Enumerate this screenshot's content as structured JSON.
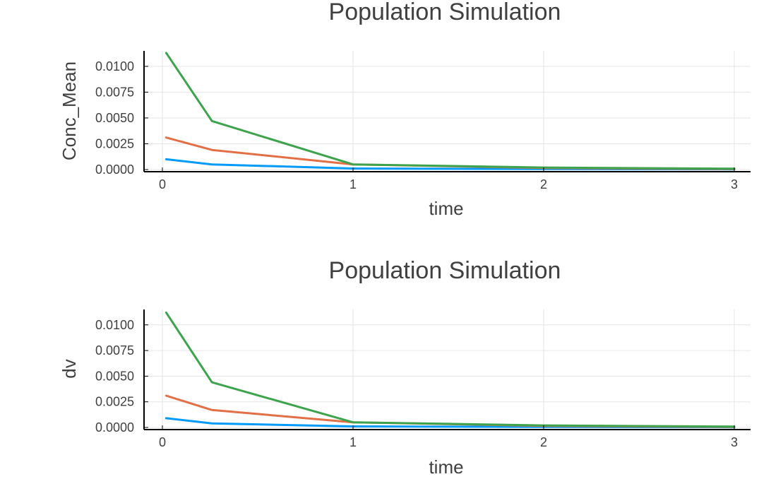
{
  "chart_data": [
    {
      "type": "line",
      "title": "Population Simulation",
      "xlabel": "time",
      "ylabel": "Conc_Mean",
      "xlim": [
        0,
        3
      ],
      "ylim": [
        0,
        0.0115
      ],
      "x_ticks": [
        "0",
        "1",
        "2",
        "3"
      ],
      "y_ticks": [
        "0.0000",
        "0.0025",
        "0.0050",
        "0.0075",
        "0.0100"
      ],
      "grid": true,
      "legend": "none",
      "x": [
        0.02,
        0.26,
        1,
        2,
        3
      ],
      "series": [
        {
          "color": "#009af9",
          "values": [
            0.001,
            0.0005,
            0.0001,
            5e-05,
            2e-05
          ]
        },
        {
          "color": "#e26f46",
          "values": [
            0.0031,
            0.0019,
            0.0005,
            0.00015,
            5e-05
          ]
        },
        {
          "color": "#3da44d",
          "values": [
            0.0113,
            0.0047,
            0.0005,
            0.0002,
            8e-05
          ]
        }
      ]
    },
    {
      "type": "line",
      "title": "Population Simulation",
      "xlabel": "time",
      "ylabel": "dv",
      "xlim": [
        0,
        3
      ],
      "ylim": [
        0,
        0.0115
      ],
      "x_ticks": [
        "0",
        "1",
        "2",
        "3"
      ],
      "y_ticks": [
        "0.0000",
        "0.0025",
        "0.0050",
        "0.0075",
        "0.0100"
      ],
      "grid": true,
      "legend": "none",
      "x": [
        0.02,
        0.26,
        1,
        2,
        3
      ],
      "series": [
        {
          "color": "#009af9",
          "values": [
            0.0009,
            0.0004,
            0.0001,
            5e-05,
            2e-05
          ]
        },
        {
          "color": "#e26f46",
          "values": [
            0.0031,
            0.0017,
            0.0005,
            0.00015,
            5e-05
          ]
        },
        {
          "color": "#3da44d",
          "values": [
            0.0112,
            0.0044,
            0.0005,
            0.0002,
            8e-05
          ]
        }
      ]
    }
  ]
}
